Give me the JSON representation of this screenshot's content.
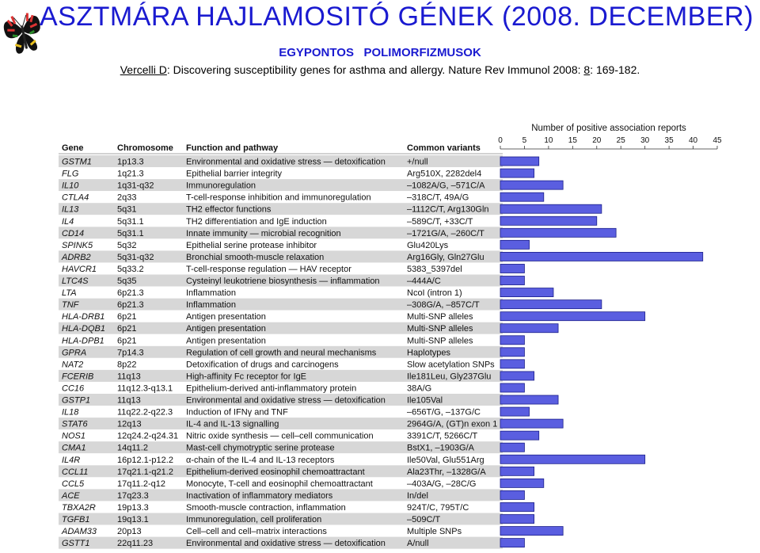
{
  "header": {
    "title": "ASZTMÁRA  HAJLAMOSITÓ  GÉNEK  (2008. DECEMBER)",
    "subtitle": "EGYPONTOS   POLIMORFIZMUSOK",
    "citation_author": "Vercelli D",
    "citation_rest": ":  Discovering  susceptibility  genes  for  asthma  and  allergy.   Nature   Rev Immunol  2008:",
    "citation_volume": "8",
    "citation_pages": ":  169-182."
  },
  "colors": {
    "title": "#1a1ad0",
    "bar_fill": "#5a5ee0",
    "bar_stroke": "#1b1f8a",
    "row_band": "#d7d7d7"
  },
  "table": {
    "columns": [
      "Gene",
      "Chromosome",
      "Function and pathway",
      "Common variants"
    ],
    "rows": [
      [
        "GSTM1",
        "1p13.3",
        "Environmental and oxidative stress — detoxification",
        "+/null"
      ],
      [
        "FLG",
        "1q21.3",
        "Epithelial barrier integrity",
        "Arg510X, 2282del4"
      ],
      [
        "IL10",
        "1q31-q32",
        "Immunoregulation",
        "–1082A/G, –571C/A"
      ],
      [
        "CTLA4",
        "2q33",
        "T-cell-response inhibition and immunoregulation",
        "–318C/T, 49A/G"
      ],
      [
        "IL13",
        "5q31",
        "TH2 effector functions",
        "–1112C/T, Arg130Gln"
      ],
      [
        "IL4",
        "5q31.1",
        "TH2 differentiation and IgE induction",
        "–589C/T, +33C/T"
      ],
      [
        "CD14",
        "5q31.1",
        "Innate immunity — microbial recognition",
        "–1721G/A, –260C/T"
      ],
      [
        "SPINK5",
        "5q32",
        "Epithelial serine protease inhibitor",
        "Glu420Lys"
      ],
      [
        "ADRB2",
        "5q31-q32",
        "Bronchial smooth-muscle relaxation",
        "Arg16Gly, Gln27Glu"
      ],
      [
        "HAVCR1",
        "5q33.2",
        "T-cell-response regulation — HAV receptor",
        "5383_5397del"
      ],
      [
        "LTC4S",
        "5q35",
        "Cysteinyl leukotriene biosynthesis — inflammation",
        "–444A/C"
      ],
      [
        "LTA",
        "6p21.3",
        "Inflammation",
        "NcoI (intron 1)"
      ],
      [
        "TNF",
        "6p21.3",
        "Inflammation",
        "–308G/A, –857C/T"
      ],
      [
        "HLA-DRB1",
        "6p21",
        "Antigen presentation",
        "Multi-SNP alleles"
      ],
      [
        "HLA-DQB1",
        "6p21",
        "Antigen presentation",
        "Multi-SNP alleles"
      ],
      [
        "HLA-DPB1",
        "6p21",
        "Antigen presentation",
        "Multi-SNP alleles"
      ],
      [
        "GPRA",
        "7p14.3",
        "Regulation of cell growth and neural mechanisms",
        "Haplotypes"
      ],
      [
        "NAT2",
        "8p22",
        "Detoxification of drugs and carcinogens",
        "Slow acetylation SNPs"
      ],
      [
        "FCERIB",
        "11q13",
        "High-affinity Fc receptor for IgE",
        "Ile181Leu, Gly237Glu"
      ],
      [
        "CC16",
        "11q12.3-q13.1",
        "Epithelium-derived anti-inflammatory protein",
        "38A/G"
      ],
      [
        "GSTP1",
        "11q13",
        "Environmental and oxidative stress — detoxification",
        "Ile105Val"
      ],
      [
        "IL18",
        "11q22.2-q22.3",
        "Induction of IFNγ and TNF",
        "–656T/G, –137G/C"
      ],
      [
        "STAT6",
        "12q13",
        "IL-4 and IL-13 signalling",
        "2964G/A, (GT)n exon 1"
      ],
      [
        "NOS1",
        "12q24.2-q24.31",
        "Nitric oxide synthesis — cell–cell communication",
        "3391C/T, 5266C/T"
      ],
      [
        "CMA1",
        "14q11.2",
        "Mast-cell chymotryptic serine protease",
        "BstX1, –1903G/A"
      ],
      [
        "IL4R",
        "16p12.1-p12.2",
        "α-chain of the IL-4 and IL-13 receptors",
        "Ile50Val, Glu551Arg"
      ],
      [
        "CCL11",
        "17q21.1-q21.2",
        "Epithelium-derived eosinophil chemoattractant",
        "Ala23Thr, –1328G/A"
      ],
      [
        "CCL5",
        "17q11.2-q12",
        "Monocyte, T-cell and eosinophil chemoattractant",
        "–403A/G, –28C/G"
      ],
      [
        "ACE",
        "17q23.3",
        "Inactivation of inflammatory mediators",
        "In/del"
      ],
      [
        "TBXA2R",
        "19p13.3",
        "Smooth-muscle contraction, inflammation",
        "924T/C, 795T/C"
      ],
      [
        "TGFB1",
        "19q13.1",
        "Immunoregulation, cell proliferation",
        "–509C/T"
      ],
      [
        "ADAM33",
        "20p13",
        "Cell–cell and cell–matrix interactions",
        "Multiple SNPs"
      ],
      [
        "GSTT1",
        "22q11.23",
        "Environmental and oxidative stress — detoxification",
        "A/null"
      ]
    ]
  },
  "chart_data": {
    "type": "bar",
    "orientation": "horizontal",
    "title": "Number of positive association reports",
    "xlim": [
      0,
      45
    ],
    "ticks": [
      0,
      5,
      10,
      15,
      20,
      25,
      30,
      35,
      40,
      45
    ],
    "categories": [
      "GSTM1",
      "FLG",
      "IL10",
      "CTLA4",
      "IL13",
      "IL4",
      "CD14",
      "SPINK5",
      "ADRB2",
      "HAVCR1",
      "LTC4S",
      "LTA",
      "TNF",
      "HLA-DRB1",
      "HLA-DQB1",
      "HLA-DPB1",
      "GPRA",
      "NAT2",
      "FCERIB",
      "CC16",
      "GSTP1",
      "IL18",
      "STAT6",
      "NOS1",
      "CMA1",
      "IL4R",
      "CCL11",
      "CCL5",
      "ACE",
      "TBXA2R",
      "TGFB1",
      "ADAM33",
      "GSTT1"
    ],
    "values": [
      8,
      7,
      13,
      9,
      21,
      20,
      24,
      6,
      42,
      5,
      5,
      11,
      21,
      30,
      12,
      5,
      5,
      5,
      7,
      5,
      12,
      6,
      13,
      8,
      5,
      30,
      7,
      9,
      5,
      7,
      7,
      13,
      5
    ]
  }
}
